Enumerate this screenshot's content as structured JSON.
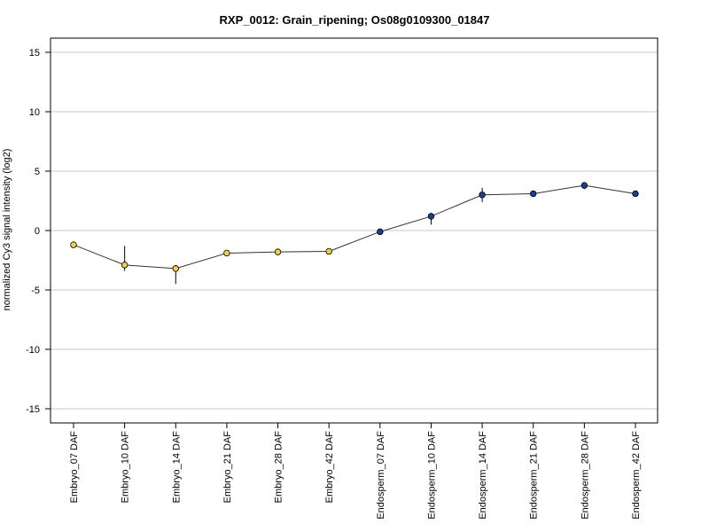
{
  "chart_data": {
    "type": "line",
    "title": "RXP_0012: Grain_ripening; Os08g0109300_01847",
    "xlabel": "",
    "ylabel": "normalized Cy3 signal intensity (log2)",
    "ylim": [
      -16,
      16
    ],
    "yticks": [
      -15,
      -10,
      -5,
      0,
      5,
      10,
      15
    ],
    "grid": true,
    "categories": [
      "Embryo_07 DAF",
      "Embryo_10 DAF",
      "Embryo_14 DAF",
      "Embryo_21 DAF",
      "Embryo_28 DAF",
      "Embryo_42 DAF",
      "Endosperm_07 DAF",
      "Endosperm_10 DAF",
      "Endosperm_14 DAF",
      "Endosperm_21 DAF",
      "Endosperm_28 DAF",
      "Endosperm_42 DAF"
    ],
    "series": [
      {
        "values": [
          -1.2,
          -2.9,
          -3.2,
          -1.9,
          -1.8,
          -1.75,
          -0.1,
          1.2,
          3.0,
          3.1,
          3.8,
          3.1
        ],
        "error_low": [
          -1.2,
          -3.4,
          -4.5,
          -1.9,
          -1.8,
          -1.75,
          -0.1,
          0.5,
          2.4,
          3.1,
          3.5,
          3.1
        ],
        "error_high": [
          -1.2,
          -1.3,
          -2.9,
          -1.9,
          -1.8,
          -1.75,
          -0.1,
          1.5,
          3.6,
          3.1,
          4.0,
          3.1
        ],
        "point_colors": [
          "#f2d13a",
          "#f2d13a",
          "#f2d13a",
          "#f2d13a",
          "#f2d13a",
          "#f2d13a",
          "#1a3c9c",
          "#1a3c9c",
          "#1a3c9c",
          "#1a3c9c",
          "#1a3c9c",
          "#1a3c9c"
        ]
      }
    ]
  }
}
